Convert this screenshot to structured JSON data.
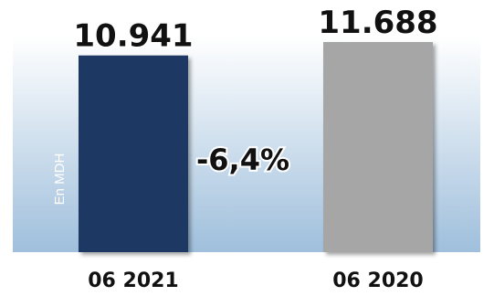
{
  "chart_data": {
    "type": "bar",
    "categories": [
      "06 2021",
      "06 2020"
    ],
    "values": [
      10941,
      11688
    ],
    "value_labels": [
      "10.941",
      "11.688"
    ],
    "unit_label": "En MDH",
    "change_label": "-6,4%",
    "ylim": [
      0,
      11688
    ],
    "grid": false,
    "legend": "none",
    "title": "",
    "xlabel": "",
    "ylabel": ""
  },
  "colors": {
    "bar_2021": "#1f3764",
    "bar_2020": "#a6a6a6",
    "background_top": "#ffffff",
    "background_bottom": "#9fbfdc"
  }
}
